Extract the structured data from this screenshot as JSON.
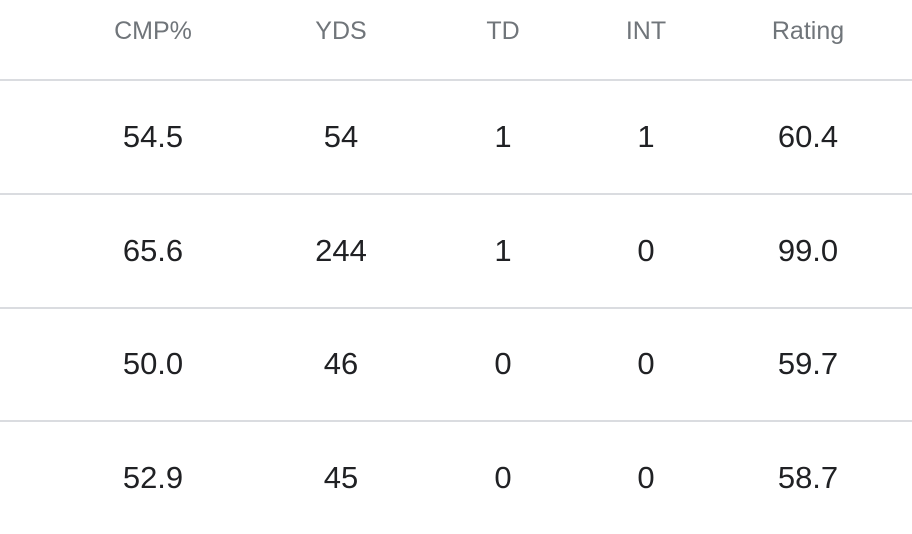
{
  "table": {
    "columns": [
      "CMP%",
      "YDS",
      "TD",
      "INT",
      "Rating"
    ],
    "rows": [
      [
        "54.5",
        "54",
        "1",
        "1",
        "60.4"
      ],
      [
        "65.6",
        "244",
        "1",
        "0",
        "99.0"
      ],
      [
        "50.0",
        "46",
        "0",
        "0",
        "59.7"
      ],
      [
        "52.9",
        "45",
        "0",
        "0",
        "58.7"
      ]
    ]
  },
  "colors": {
    "header_text": "#70757a",
    "cell_text": "#202124",
    "divider": "#dadce0"
  }
}
